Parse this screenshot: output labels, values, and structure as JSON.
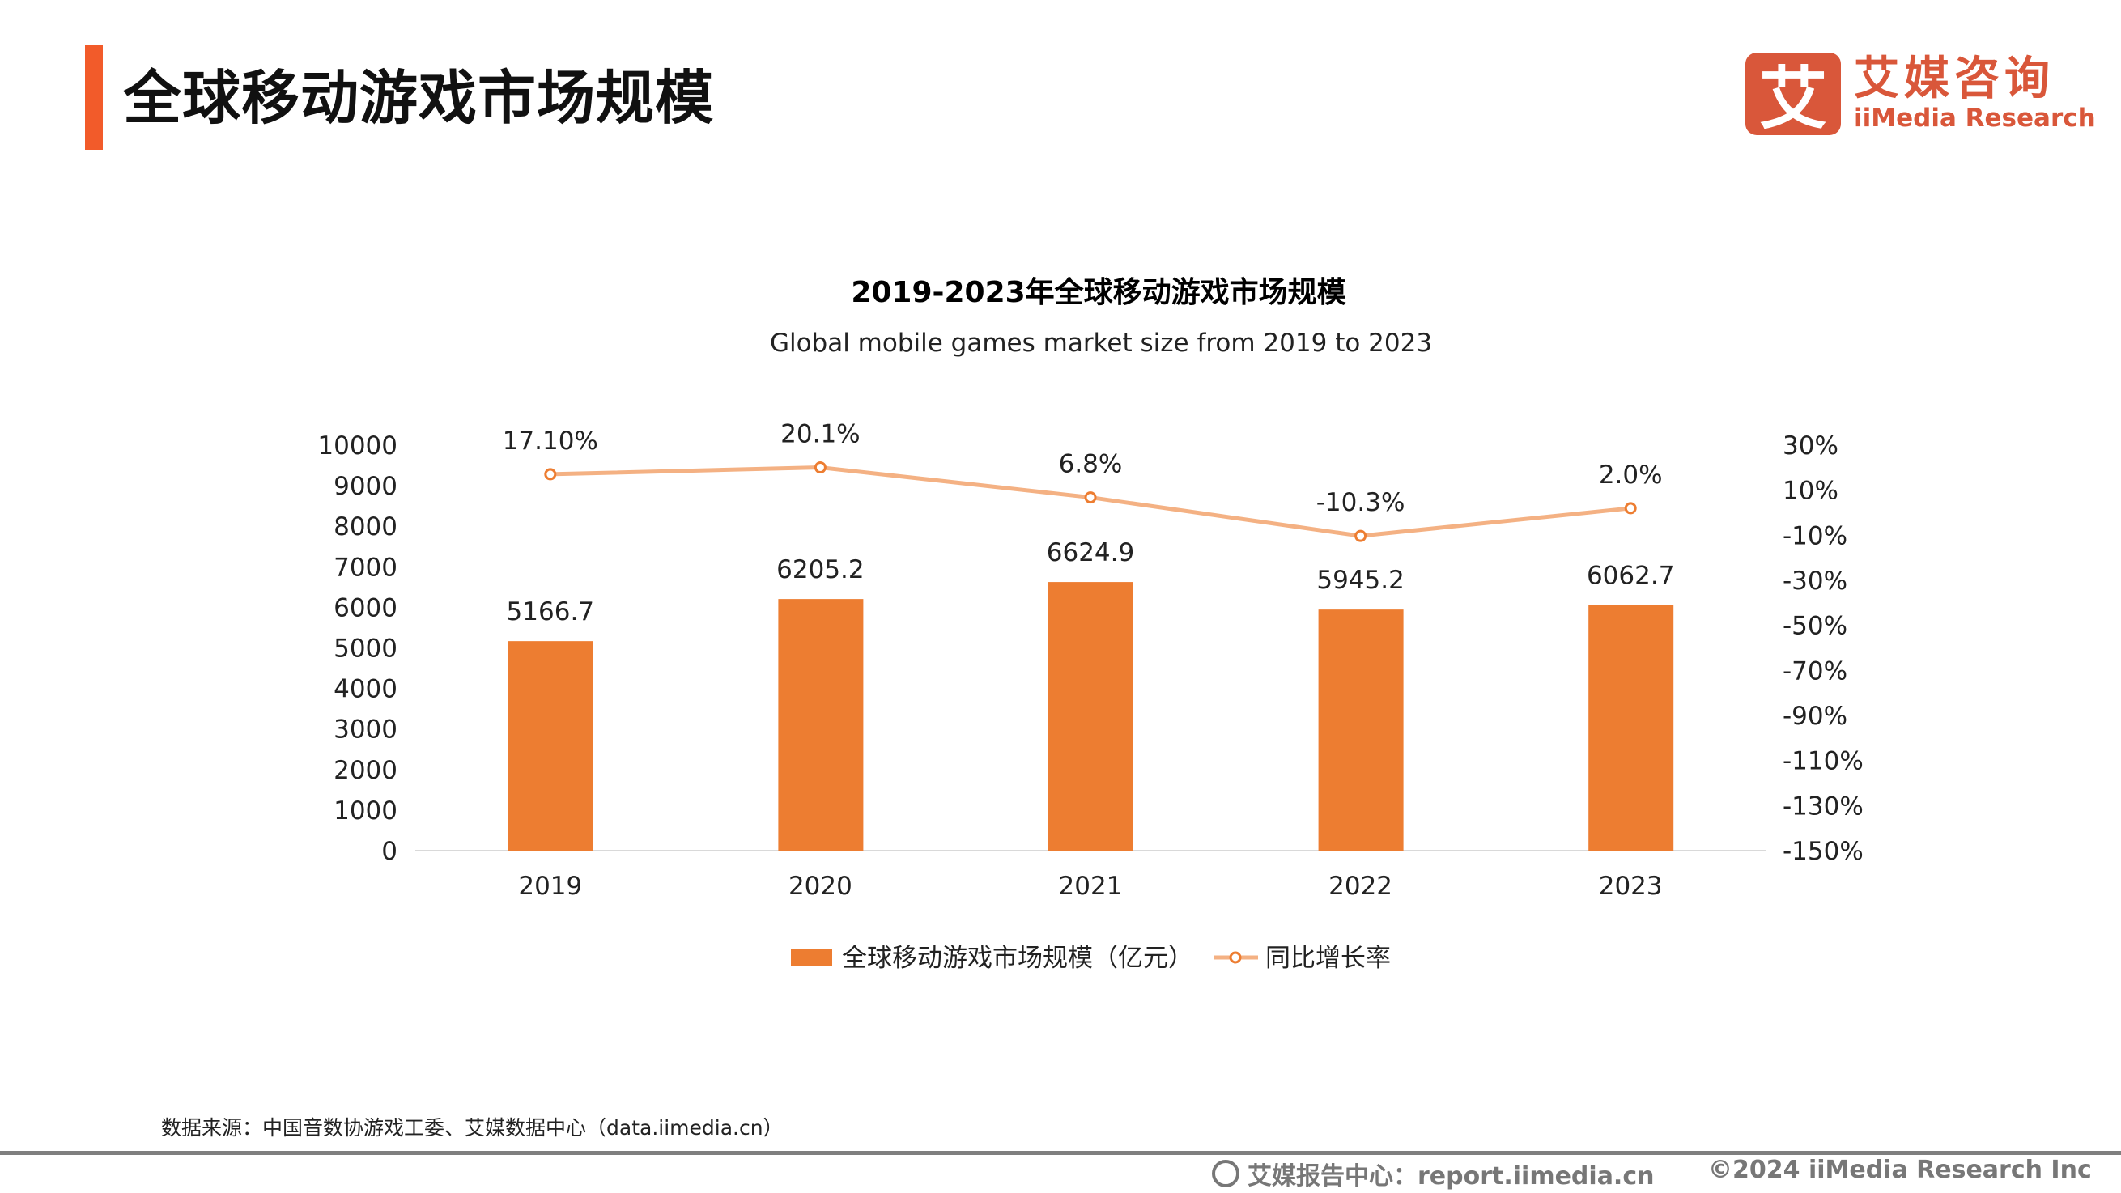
{
  "header": {
    "title": "全球移动游戏市场规模"
  },
  "logo": {
    "mark": "艾",
    "cn": "艾媒咨询",
    "en": "iiMedia Research"
  },
  "colors": {
    "accent": "#F25B2A",
    "bar": "#ED7D31",
    "line": "#F4B183",
    "logo": "#D9573A"
  },
  "chart_data": {
    "type": "bar+line",
    "title": "2019-2023年全球移动游戏市场规模",
    "subtitle": "Global mobile games market size from 2019 to 2023",
    "categories": [
      "2019",
      "2020",
      "2021",
      "2022",
      "2023"
    ],
    "series": [
      {
        "name": "全球移动游戏市场规模（亿元）",
        "type": "bar",
        "axis": "left",
        "values": [
          5166.7,
          6205.2,
          6624.9,
          5945.2,
          6062.7
        ],
        "labels": [
          "5166.7",
          "6205.2",
          "6624.9",
          "5945.2",
          "6062.7"
        ]
      },
      {
        "name": "同比增长率",
        "type": "line",
        "axis": "right",
        "values": [
          17.1,
          20.1,
          6.8,
          -10.3,
          2.0
        ],
        "labels": [
          "17.10%",
          "20.1%",
          "6.8%",
          "-10.3%",
          "2.0%"
        ]
      }
    ],
    "left_axis": {
      "ylim": [
        0,
        10000
      ],
      "ticks": [
        "0",
        "1000",
        "2000",
        "3000",
        "4000",
        "5000",
        "6000",
        "7000",
        "8000",
        "9000",
        "10000"
      ]
    },
    "right_axis": {
      "ylim": [
        -150,
        30
      ],
      "ticks": [
        "-150%",
        "-130%",
        "-110%",
        "-90%",
        "-70%",
        "-50%",
        "-30%",
        "-10%",
        "10%",
        "30%"
      ]
    },
    "grid": false,
    "legend": "bottom"
  },
  "source": "数据来源：中国音数协游戏工委、艾媒数据中心（data.iimedia.cn）",
  "footer": {
    "report_center": "艾媒报告中心：report.iimedia.cn",
    "copyright": "©2024  iiMedia Research  Inc"
  }
}
